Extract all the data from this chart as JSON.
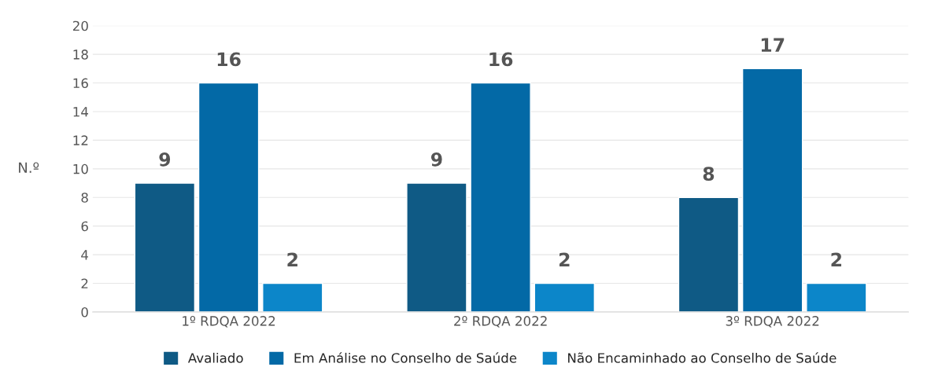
{
  "chart_data": {
    "type": "bar",
    "ylabel": "N.º",
    "categories": [
      "1º RDQA 2022",
      "2º RDQA 2022",
      "3º RDQA 2022"
    ],
    "series": [
      {
        "name": "Avaliado",
        "color": "#0f5a85",
        "values": [
          9,
          9,
          8
        ]
      },
      {
        "name": "Em Análise no Conselho de Saúde",
        "color": "#0369a6",
        "values": [
          16,
          16,
          17
        ]
      },
      {
        "name": "Não Encaminhado ao Conselho de Saúde",
        "color": "#0c86c9",
        "values": [
          2,
          2,
          2
        ]
      }
    ],
    "data_labels": true,
    "ylim": [
      0,
      20
    ],
    "yticks": [
      0,
      2,
      4,
      6,
      8,
      10,
      12,
      14,
      16,
      18,
      20
    ],
    "grid": "y",
    "legend": "bottom"
  }
}
